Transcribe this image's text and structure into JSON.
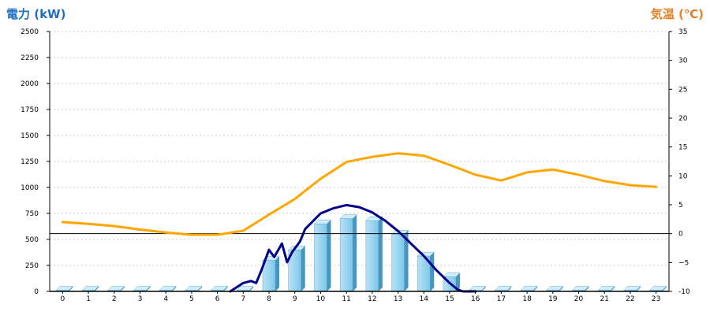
{
  "chart_data": {
    "type": "bar",
    "title": "",
    "xlabel": "",
    "categories": [
      "0",
      "1",
      "2",
      "3",
      "4",
      "5",
      "6",
      "7",
      "8",
      "9",
      "10",
      "11",
      "12",
      "13",
      "14",
      "15",
      "16",
      "17",
      "18",
      "19",
      "20",
      "21",
      "22",
      "23"
    ],
    "y_left": {
      "label": "電力 (kW)",
      "ylim": [
        0,
        2500
      ],
      "ticks": [
        "0",
        "250",
        "500",
        "750",
        "1000",
        "1250",
        "1500",
        "1750",
        "2000",
        "2250",
        "2500"
      ],
      "color": "#1f6fc1"
    },
    "y_right": {
      "label": "気温 (℃)",
      "ylim": [
        -10,
        35
      ],
      "ticks": [
        "-10",
        "−5",
        "0",
        "5",
        "10",
        "15",
        "20",
        "25",
        "30",
        "35"
      ],
      "color": "#e67e22",
      "zero_line": 0
    },
    "grid": true,
    "series": [
      {
        "type": "bar",
        "axis": "left",
        "color": "#87ceeb",
        "values": [
          0,
          0,
          0,
          0,
          0,
          0,
          0,
          0,
          300,
          400,
          650,
          700,
          680,
          550,
          340,
          140,
          0,
          0,
          0,
          0,
          0,
          0,
          0,
          0
        ]
      },
      {
        "type": "line",
        "axis": "left",
        "color": "#00008b",
        "x": [
          6.5,
          7,
          7.3,
          7.5,
          7.7,
          8,
          8.2,
          8.5,
          8.7,
          8.9,
          9.2,
          9.4,
          9.6,
          10,
          10.5,
          11,
          11.5,
          12,
          12.5,
          13,
          13.5,
          14,
          14.5,
          15,
          15.3,
          15.5,
          16
        ],
        "values": [
          0,
          80,
          100,
          80,
          200,
          400,
          330,
          460,
          280,
          380,
          480,
          600,
          650,
          750,
          800,
          830,
          810,
          760,
          680,
          580,
          460,
          340,
          200,
          80,
          20,
          0,
          0
        ]
      },
      {
        "type": "line",
        "axis": "right",
        "color": "#ffa500",
        "values": [
          2.0,
          1.7,
          1.3,
          0.7,
          0.2,
          -0.2,
          -0.2,
          0.5,
          3.3,
          6.0,
          9.5,
          12.4,
          13.3,
          13.9,
          13.5,
          11.9,
          10.2,
          9.2,
          10.6,
          11.1,
          10.2,
          9.1,
          8.4,
          8.1
        ]
      }
    ]
  }
}
